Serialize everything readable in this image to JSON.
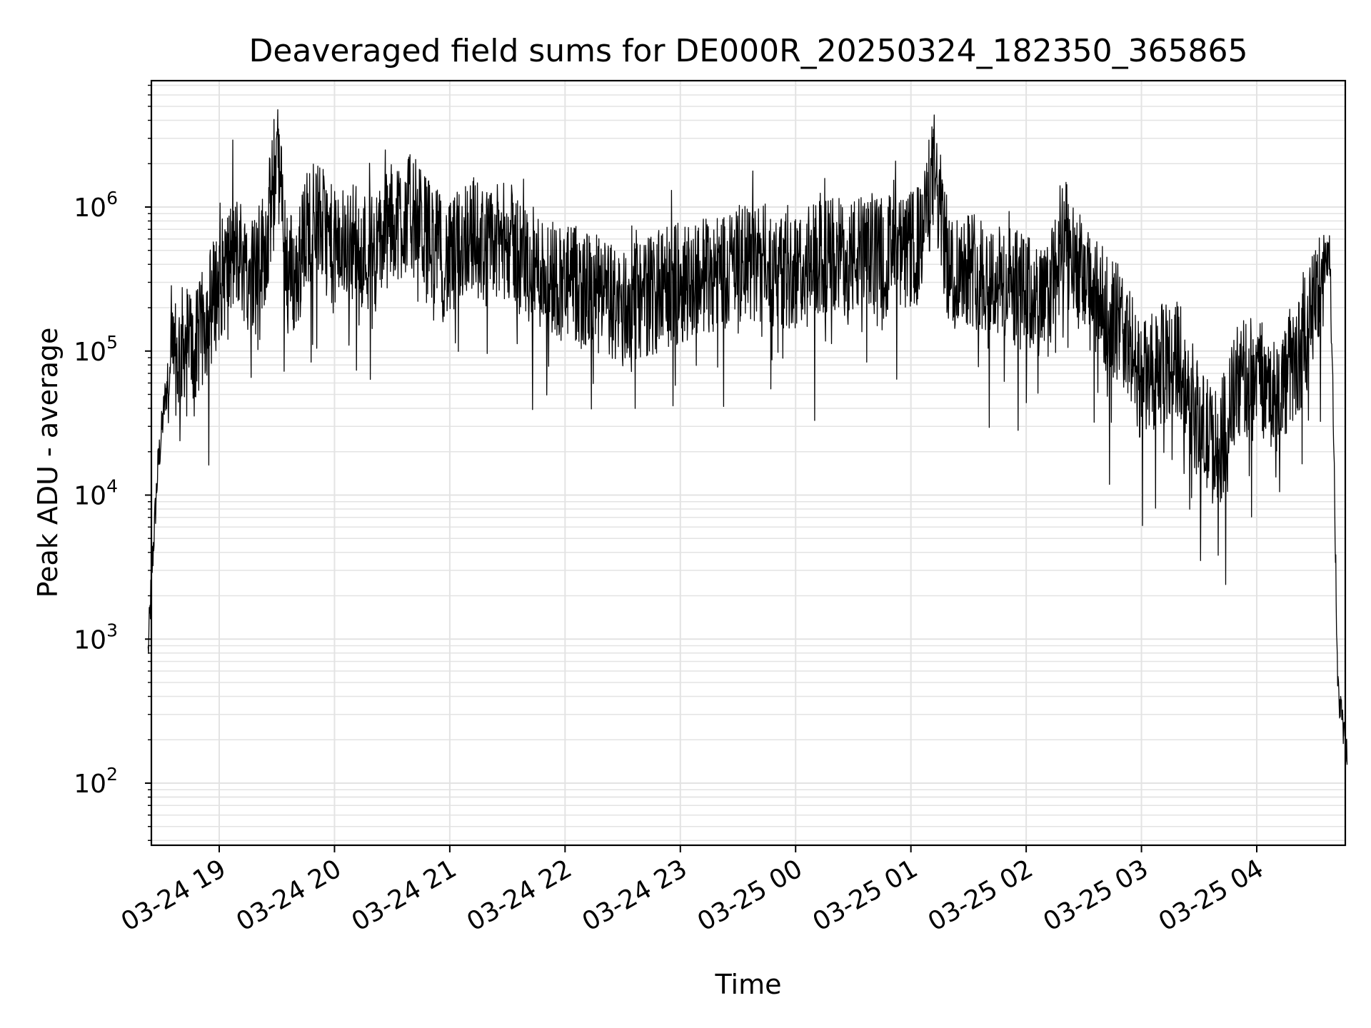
{
  "chart_data": {
    "type": "line",
    "title": "Deaveraged field sums for DE000R_20250324_182350_365865",
    "xlabel": "Time",
    "ylabel": "Peak ADU - average",
    "yscale": "log",
    "ylim": [
      40,
      8000000
    ],
    "xlim": [
      "03-24 18:23",
      "03-25 04:47"
    ],
    "grid": true,
    "grid_minor": true,
    "x_ticks": [
      "03-24 19",
      "03-24 20",
      "03-24 21",
      "03-24 22",
      "03-24 23",
      "03-25 00",
      "03-25 01",
      "03-25 02",
      "03-25 03",
      "03-25 04"
    ],
    "y_ticks": [
      {
        "base": "10",
        "exp": "2",
        "value": 100
      },
      {
        "base": "10",
        "exp": "3",
        "value": 1000
      },
      {
        "base": "10",
        "exp": "4",
        "value": 10000
      },
      {
        "base": "10",
        "exp": "5",
        "value": 100000
      },
      {
        "base": "10",
        "exp": "6",
        "value": 1000000
      }
    ],
    "line_color": "#000000",
    "grid_color": "#e3e3e3",
    "series": [
      {
        "x": [
          "03-24 18:23",
          "03-24 18:25",
          "03-24 18:28",
          "03-24 18:32",
          "03-24 18:37",
          "03-24 18:42",
          "03-24 18:48",
          "03-24 18:55",
          "03-24 19:00",
          "03-24 19:05",
          "03-24 19:10",
          "03-24 19:15",
          "03-24 19:20",
          "03-24 19:25",
          "03-24 19:30",
          "03-24 19:35",
          "03-24 19:40",
          "03-24 19:45",
          "03-24 19:50",
          "03-24 20:00",
          "03-24 20:10",
          "03-24 20:20",
          "03-24 20:30",
          "03-24 20:40",
          "03-24 20:50",
          "03-24 21:00",
          "03-24 21:10",
          "03-24 21:20",
          "03-24 21:30",
          "03-24 21:40",
          "03-24 21:50",
          "03-24 22:00",
          "03-24 22:15",
          "03-24 22:30",
          "03-24 22:45",
          "03-24 23:00",
          "03-24 23:15",
          "03-24 23:30",
          "03-24 23:45",
          "03-25 00:00",
          "03-25 00:15",
          "03-25 00:30",
          "03-25 00:45",
          "03-25 00:55",
          "03-25 01:05",
          "03-25 01:12",
          "03-25 01:20",
          "03-25 01:30",
          "03-25 01:45",
          "03-25 02:00",
          "03-25 02:10",
          "03-25 02:20",
          "03-25 02:30",
          "03-25 02:40",
          "03-25 02:50",
          "03-25 03:00",
          "03-25 03:10",
          "03-25 03:20",
          "03-25 03:30",
          "03-25 03:40",
          "03-25 03:50",
          "03-25 04:00",
          "03-25 04:10",
          "03-25 04:20",
          "03-25 04:30",
          "03-25 04:35",
          "03-25 04:38",
          "03-25 04:40",
          "03-25 04:42",
          "03-25 04:44",
          "03-25 04:47"
        ],
        "values": [
          800,
          3000,
          15000,
          50000,
          80000,
          120000,
          100000,
          200000,
          300000,
          400000,
          500000,
          350000,
          400000,
          600000,
          2500000,
          450000,
          300000,
          700000,
          900000,
          500000,
          600000,
          450000,
          800000,
          900000,
          600000,
          400000,
          700000,
          500000,
          600000,
          400000,
          350000,
          300000,
          250000,
          200000,
          250000,
          300000,
          350000,
          400000,
          400000,
          350000,
          450000,
          450000,
          500000,
          450000,
          550000,
          1800000,
          350000,
          400000,
          300000,
          250000,
          200000,
          600000,
          300000,
          200000,
          150000,
          60000,
          80000,
          90000,
          30000,
          20000,
          60000,
          70000,
          50000,
          80000,
          200000,
          400000,
          500000,
          30000,
          500,
          300,
          150
        ]
      }
    ]
  }
}
